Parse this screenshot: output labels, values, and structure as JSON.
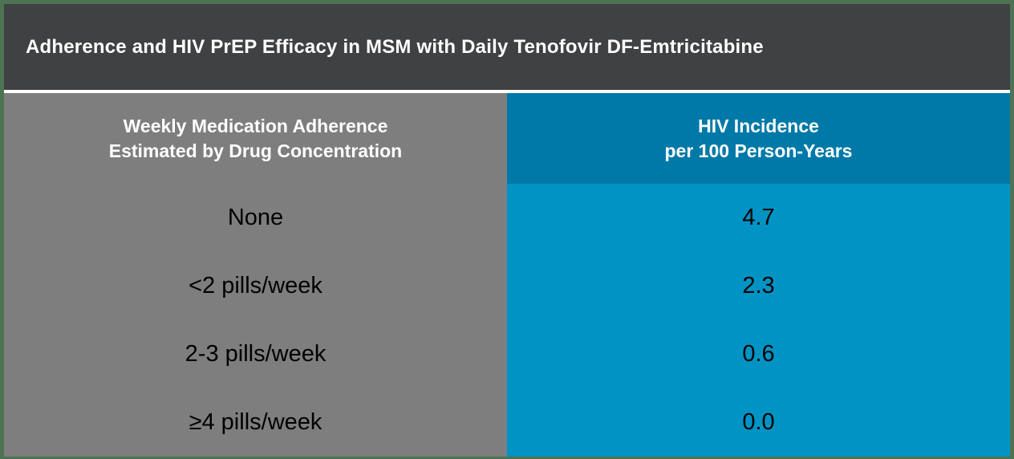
{
  "title": "Adherence and HIV PrEP Efficacy in MSM with Daily Tenofovir DF-Emtricitabine",
  "table": {
    "columns": {
      "adherence": {
        "line1": "Weekly Medication Adherence",
        "line2": "Estimated by Drug Concentration"
      },
      "incidence": {
        "line1": "HIV Incidence",
        "line2": "per 100 Person-Years"
      }
    },
    "rows": [
      {
        "adherence": "None",
        "incidence": "4.7"
      },
      {
        "adherence": "<2 pills/week",
        "incidence": "2.3"
      },
      {
        "adherence": "2-3 pills/week",
        "incidence": "0.6"
      },
      {
        "adherence": "≥4 pills/week",
        "incidence": "0.0"
      }
    ]
  },
  "colors": {
    "border_green": "#4d7354",
    "title_bar_bg": "#3f4142",
    "title_text": "#ffffff",
    "adherence_column_bg": "#7e7e7e",
    "incidence_header_bg": "#0179a8",
    "incidence_body_bg": "#0193c4",
    "row_text": "#000000",
    "header_text": "#ffffff"
  },
  "chart_data": {
    "type": "table",
    "title": "Adherence and HIV PrEP Efficacy in MSM with Daily Tenofovir DF-Emtricitabine",
    "columns": [
      "Weekly Medication Adherence Estimated by Drug Concentration",
      "HIV Incidence per 100 Person-Years"
    ],
    "rows": [
      [
        "None",
        4.7
      ],
      [
        "<2 pills/week",
        2.3
      ],
      [
        "2-3 pills/week",
        0.6
      ],
      [
        "≥4 pills/week",
        0.0
      ]
    ]
  }
}
